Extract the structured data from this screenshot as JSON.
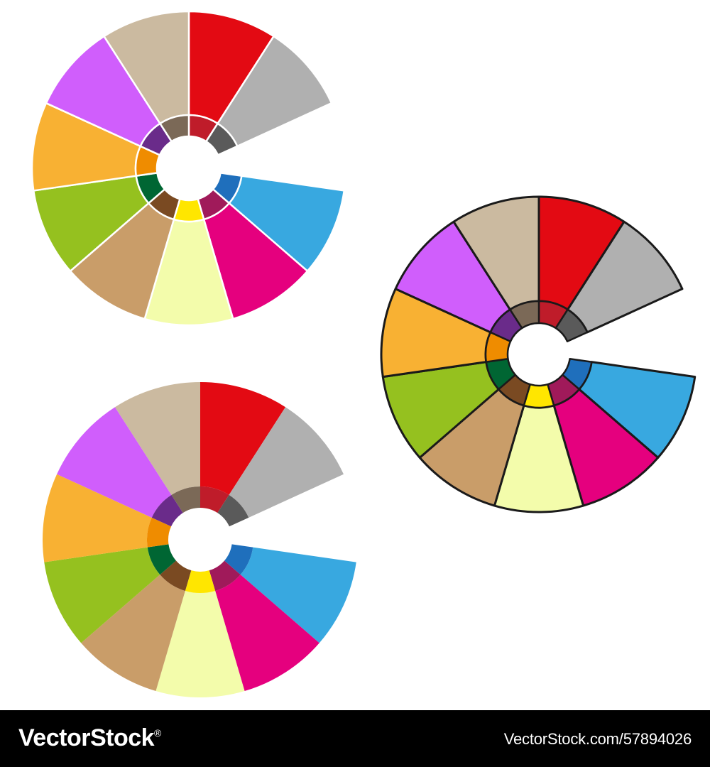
{
  "footer": {
    "brand": "VectorStock",
    "registered": "®",
    "url": "VectorStock.com/57894026"
  },
  "wheels": [
    {
      "name": "wheel-white-outline",
      "style": "white-separators"
    },
    {
      "name": "wheel-black-outline",
      "style": "black-outline"
    },
    {
      "name": "wheel-no-outline",
      "style": "no-separators"
    }
  ],
  "segments": [
    {
      "name": "red",
      "outer": "#e30a13",
      "inner": "#bf1c2a"
    },
    {
      "name": "gray",
      "outer": "#b0b0b0",
      "inner": "#5a5a5a"
    },
    {
      "name": "gap",
      "outer": null,
      "inner": null
    },
    {
      "name": "blue",
      "outer": "#38a8e0",
      "inner": "#1f6fbc"
    },
    {
      "name": "magenta",
      "outer": "#e5007e",
      "inner": "#a01a5a"
    },
    {
      "name": "pale-yellow",
      "outer": "#f3fcab",
      "inner": "#ffe600"
    },
    {
      "name": "tan",
      "outer": "#c99d69",
      "inner": "#7a4a22"
    },
    {
      "name": "green",
      "outer": "#95c11f",
      "inner": "#006633"
    },
    {
      "name": "orange",
      "outer": "#f8b133",
      "inner": "#ef8c00"
    },
    {
      "name": "violet",
      "outer": "#d05efc",
      "inner": "#6a2b8a"
    },
    {
      "name": "beige",
      "outer": "#cbbaa0",
      "inner": "#7b6957"
    }
  ]
}
